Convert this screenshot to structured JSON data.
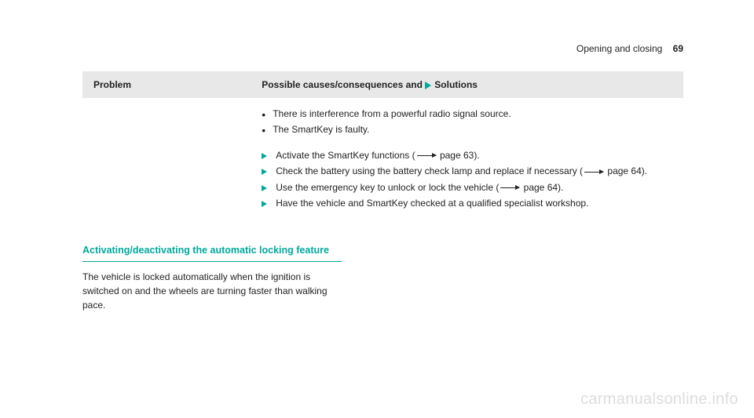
{
  "header": {
    "chapter": "Opening and closing",
    "page_number": "69"
  },
  "table": {
    "header": {
      "problem": "Problem",
      "solutions_prefix": "Possible causes/consequences and ",
      "solutions_suffix": "Solutions"
    },
    "causes": [
      "There is interference from a powerful radio signal source.",
      "The SmartKey is faulty."
    ],
    "actions": [
      {
        "pre": "Activate the SmartKey functions (",
        "page": " page 63).",
        "has_ref": true
      },
      {
        "pre": "Check the battery using the battery check lamp and replace if necessary (",
        "page": " page 64).",
        "has_ref": true
      },
      {
        "pre": "Use the emergency key to unlock or lock the vehicle (",
        "page": " page 64).",
        "has_ref": true
      },
      {
        "pre": "Have the vehicle and SmartKey checked at a qualified specialist workshop.",
        "page": "",
        "has_ref": false
      }
    ]
  },
  "section": {
    "heading": "Activating/deactivating the automatic locking feature",
    "body": "The vehicle is locked automatically when the ignition is switched on and the wheels are turning faster than walking pace."
  },
  "watermark": "carmanualsonline.info",
  "colors": {
    "teal": "#00a99d",
    "header_bg": "#e8e8e8",
    "text": "#222222",
    "watermark": "#dddddd"
  },
  "typography": {
    "body_fontsize": 12,
    "heading_fontsize": 12.5,
    "watermark_fontsize": 20
  }
}
